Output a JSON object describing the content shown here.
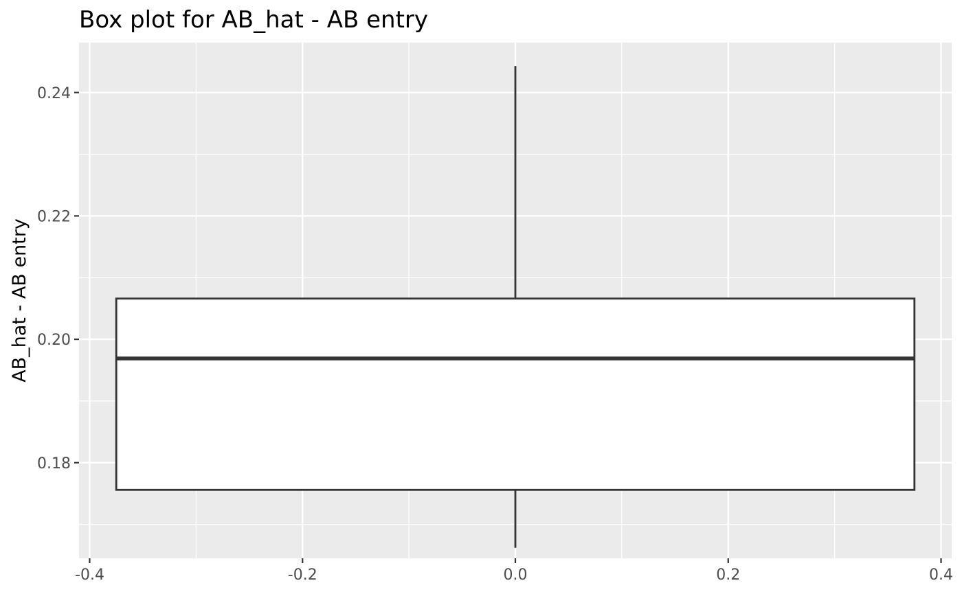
{
  "chart_data": {
    "type": "box",
    "title": "Box plot for AB_hat - AB entry",
    "xlabel": "",
    "ylabel": "AB_hat - AB entry",
    "xlim": [
      -0.41,
      0.41
    ],
    "ylim": [
      0.1645,
      0.2481
    ],
    "x_ticks": [
      -0.4,
      -0.2,
      0.0,
      0.2,
      0.4
    ],
    "x_tick_labels": [
      "-0.4",
      "-0.2",
      "0.0",
      "0.2",
      "0.4"
    ],
    "y_ticks": [
      0.18,
      0.2,
      0.22,
      0.24
    ],
    "y_tick_labels": [
      "0.18",
      "0.20",
      "0.22",
      "0.24"
    ],
    "grid": true,
    "box": {
      "x_center": 0.0,
      "x_half_width": 0.375,
      "whisker_low": 0.1662,
      "q1": 0.1756,
      "median": 0.1969,
      "q3": 0.2066,
      "whisker_high": 0.2443
    },
    "colors": {
      "panel_background": "#ebebeb",
      "grid_major": "#ffffff",
      "box_fill": "#ffffff",
      "box_stroke": "#333333",
      "tick_mark": "#333333",
      "tick_text": "#4d4d4d"
    }
  }
}
